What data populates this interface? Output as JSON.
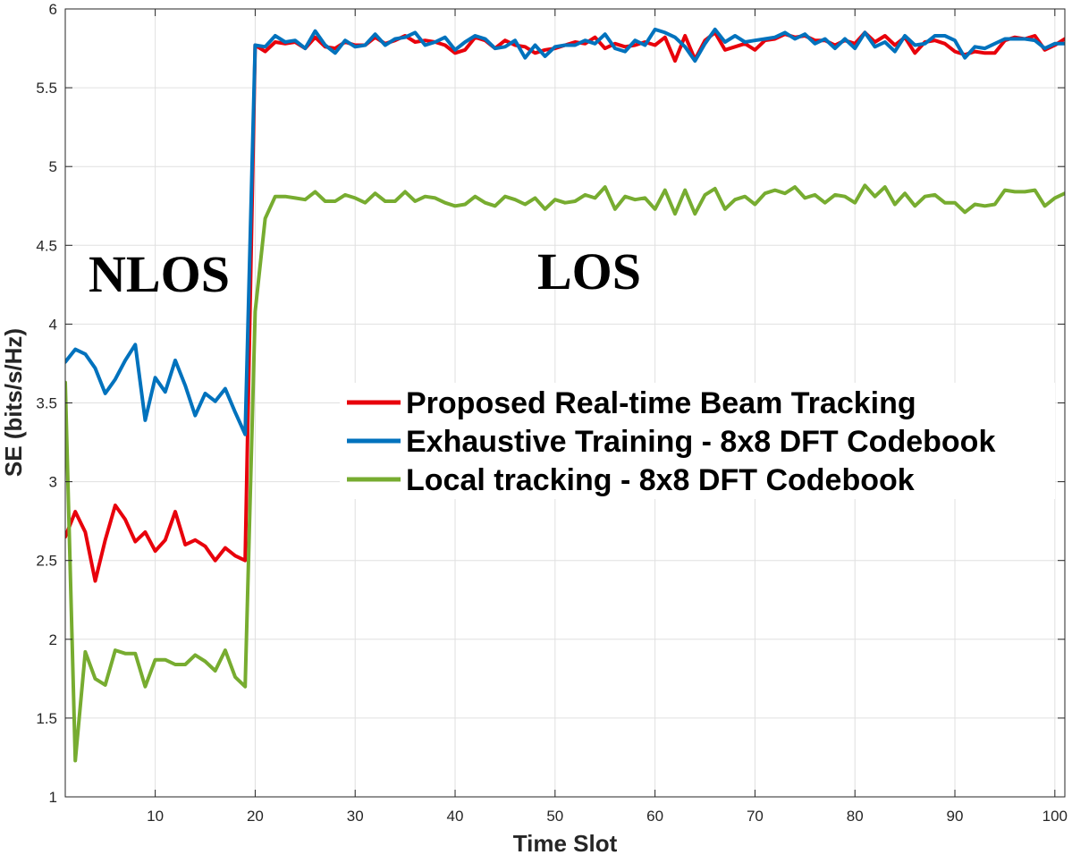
{
  "chart_data": {
    "type": "line",
    "title": "",
    "xlabel": "Time Slot",
    "ylabel": "SE (bits/s/Hz)",
    "xlim": [
      1,
      101
    ],
    "ylim": [
      1,
      6
    ],
    "xticks": [
      10,
      20,
      30,
      40,
      50,
      60,
      70,
      80,
      90,
      100
    ],
    "yticks": [
      1,
      1.5,
      2,
      2.5,
      3,
      3.5,
      4,
      4.5,
      5,
      5.5,
      6
    ],
    "grid": true,
    "legend_placement": "center-right",
    "annotations": [
      {
        "text": "NLOS",
        "x": 9,
        "y": 4.33
      },
      {
        "text": "LOS",
        "x": 45,
        "y": 4.33
      }
    ],
    "x": [
      1,
      2,
      3,
      4,
      5,
      6,
      7,
      8,
      9,
      10,
      11,
      12,
      13,
      14,
      15,
      16,
      17,
      18,
      19,
      20,
      21,
      22,
      23,
      24,
      25,
      26,
      27,
      28,
      29,
      30,
      31,
      32,
      33,
      34,
      35,
      36,
      37,
      38,
      39,
      40,
      41,
      42,
      43,
      44,
      45,
      46,
      47,
      48,
      49,
      50,
      51,
      52,
      53,
      54,
      55,
      56,
      57,
      58,
      59,
      60,
      61,
      62,
      63,
      64,
      65,
      66,
      67,
      68,
      69,
      70,
      71,
      72,
      73,
      74,
      75,
      76,
      77,
      78,
      79,
      80,
      81,
      82,
      83,
      84,
      85,
      86,
      87,
      88,
      89,
      90,
      91,
      92,
      93,
      94,
      95,
      96,
      97,
      98,
      99,
      100,
      101
    ],
    "series": [
      {
        "name": "Proposed Real-time Beam Tracking",
        "color": "#e8000b",
        "values": [
          2.65,
          2.81,
          2.68,
          2.37,
          2.63,
          2.85,
          2.76,
          2.62,
          2.68,
          2.56,
          2.63,
          2.81,
          2.6,
          2.63,
          2.59,
          2.5,
          2.58,
          2.53,
          2.5,
          5.77,
          5.73,
          5.79,
          5.78,
          5.79,
          5.75,
          5.82,
          5.76,
          5.75,
          5.79,
          5.77,
          5.77,
          5.82,
          5.78,
          5.8,
          5.83,
          5.79,
          5.8,
          5.79,
          5.77,
          5.72,
          5.74,
          5.82,
          5.8,
          5.75,
          5.8,
          5.77,
          5.76,
          5.72,
          5.74,
          5.75,
          5.77,
          5.79,
          5.78,
          5.82,
          5.75,
          5.78,
          5.76,
          5.77,
          5.79,
          5.77,
          5.82,
          5.67,
          5.83,
          5.68,
          5.8,
          5.85,
          5.74,
          5.76,
          5.78,
          5.74,
          5.8,
          5.81,
          5.84,
          5.82,
          5.83,
          5.8,
          5.8,
          5.77,
          5.8,
          5.78,
          5.85,
          5.79,
          5.83,
          5.77,
          5.82,
          5.72,
          5.79,
          5.8,
          5.78,
          5.73,
          5.71,
          5.73,
          5.72,
          5.72,
          5.8,
          5.82,
          5.81,
          5.83,
          5.74,
          5.77,
          5.81
        ]
      },
      {
        "name": "Exhaustive Training - 8x8 DFT Codebook",
        "color": "#0072bd",
        "values": [
          3.76,
          3.84,
          3.81,
          3.72,
          3.56,
          3.65,
          3.77,
          3.87,
          3.39,
          3.66,
          3.57,
          3.77,
          3.61,
          3.42,
          3.56,
          3.51,
          3.59,
          3.44,
          3.3,
          5.77,
          5.76,
          5.83,
          5.79,
          5.8,
          5.75,
          5.86,
          5.77,
          5.72,
          5.8,
          5.76,
          5.77,
          5.84,
          5.77,
          5.81,
          5.82,
          5.85,
          5.77,
          5.79,
          5.82,
          5.74,
          5.79,
          5.83,
          5.81,
          5.75,
          5.76,
          5.8,
          5.69,
          5.77,
          5.7,
          5.76,
          5.77,
          5.77,
          5.8,
          5.78,
          5.84,
          5.75,
          5.73,
          5.8,
          5.77,
          5.87,
          5.85,
          5.82,
          5.76,
          5.67,
          5.78,
          5.87,
          5.79,
          5.83,
          5.79,
          5.8,
          5.81,
          5.82,
          5.85,
          5.81,
          5.84,
          5.78,
          5.81,
          5.75,
          5.81,
          5.75,
          5.85,
          5.76,
          5.79,
          5.73,
          5.83,
          5.77,
          5.78,
          5.83,
          5.83,
          5.8,
          5.69,
          5.76,
          5.75,
          5.78,
          5.81,
          5.81,
          5.81,
          5.8,
          5.75,
          5.78,
          5.78
        ]
      },
      {
        "name": "Local tracking - 8x8 DFT Codebook",
        "color": "#77ac30",
        "values": [
          3.63,
          1.23,
          1.92,
          1.75,
          1.71,
          1.93,
          1.91,
          1.91,
          1.7,
          1.87,
          1.87,
          1.84,
          1.84,
          1.9,
          1.86,
          1.8,
          1.93,
          1.76,
          1.7,
          4.08,
          4.67,
          4.81,
          4.81,
          4.8,
          4.79,
          4.84,
          4.78,
          4.78,
          4.82,
          4.8,
          4.77,
          4.83,
          4.78,
          4.78,
          4.84,
          4.78,
          4.81,
          4.8,
          4.77,
          4.75,
          4.76,
          4.81,
          4.77,
          4.75,
          4.81,
          4.79,
          4.76,
          4.8,
          4.73,
          4.79,
          4.77,
          4.78,
          4.82,
          4.8,
          4.87,
          4.73,
          4.81,
          4.79,
          4.8,
          4.73,
          4.85,
          4.7,
          4.85,
          4.7,
          4.82,
          4.86,
          4.73,
          4.79,
          4.81,
          4.76,
          4.83,
          4.85,
          4.83,
          4.87,
          4.8,
          4.82,
          4.77,
          4.82,
          4.81,
          4.77,
          4.88,
          4.81,
          4.87,
          4.76,
          4.83,
          4.75,
          4.81,
          4.82,
          4.77,
          4.77,
          4.71,
          4.76,
          4.75,
          4.76,
          4.85,
          4.84,
          4.84,
          4.85,
          4.75,
          4.8,
          4.83
        ]
      }
    ]
  }
}
